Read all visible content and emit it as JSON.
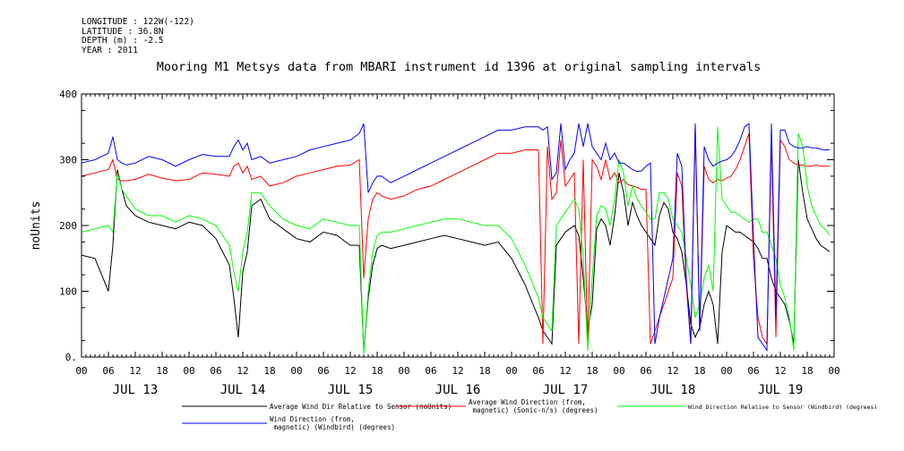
{
  "header": {
    "meta_lines": [
      "LONGITUDE : 122W(-122)",
      "LATITUDE : 36.8N",
      "DEPTH (m) : -2.5",
      "YEAR : 2011"
    ]
  },
  "chart_data": {
    "type": "line",
    "title": "Mooring M1 Metsys data from MBARI instrument id 1396 at original sampling intervals",
    "ylabel": "noUnits",
    "xlabel": "",
    "ylim": [
      0,
      400
    ],
    "yticks": [
      0,
      100,
      200,
      300,
      400
    ],
    "ytick_labels": [
      "0.",
      "100",
      "200",
      "300",
      "400"
    ],
    "xlim_hours": [
      0,
      168
    ],
    "hour_labels": [
      "00",
      "06",
      "12",
      "18",
      "00",
      "06",
      "12",
      "18",
      "00",
      "06",
      "12",
      "18",
      "00",
      "06",
      "12",
      "18",
      "00",
      "06",
      "12",
      "18",
      "00",
      "06",
      "12",
      "18",
      "00",
      "06",
      "12",
      "18",
      "00"
    ],
    "day_labels": [
      "JUL 13",
      "JUL 14",
      "JUL 15",
      "JUL 16",
      "JUL 17",
      "JUL 18",
      "JUL 19"
    ],
    "grid": false,
    "legend_position": "bottom",
    "series": [
      {
        "name": "Average Wind Dir Relative to Sensor (noUnits)",
        "color": "#000000",
        "x": [
          0,
          3,
          6,
          7,
          8,
          9,
          10,
          12,
          15,
          18,
          21,
          24,
          27,
          30,
          33,
          34,
          35,
          36,
          37,
          38,
          40,
          42,
          45,
          48,
          51,
          54,
          57,
          60,
          62,
          63,
          64,
          65,
          66,
          67,
          69,
          72,
          75,
          78,
          81,
          84,
          87,
          90,
          93,
          96,
          99,
          102,
          103,
          104,
          105,
          106,
          107,
          108,
          109,
          110,
          111,
          112,
          113,
          114,
          115,
          116,
          117,
          118,
          119,
          120,
          121,
          122,
          123,
          124,
          125,
          126,
          127,
          128,
          129,
          130,
          131,
          132,
          133,
          134,
          135,
          136,
          137,
          138,
          139,
          140,
          141,
          142,
          143,
          144,
          145,
          146,
          147,
          148,
          149,
          150,
          151,
          152,
          153,
          154,
          155,
          156,
          157,
          158,
          159,
          160,
          161,
          162,
          163,
          164,
          165,
          166,
          167
        ],
        "y": [
          155,
          150,
          100,
          170,
          285,
          255,
          230,
          215,
          205,
          200,
          195,
          205,
          200,
          180,
          140,
          90,
          30,
          130,
          160,
          230,
          240,
          210,
          195,
          180,
          175,
          190,
          185,
          170,
          170,
          10,
          90,
          140,
          165,
          170,
          165,
          170,
          175,
          180,
          185,
          180,
          175,
          170,
          175,
          150,
          110,
          60,
          40,
          30,
          20,
          170,
          180,
          190,
          195,
          200,
          185,
          120,
          40,
          80,
          195,
          210,
          200,
          170,
          215,
          280,
          250,
          200,
          235,
          215,
          200,
          190,
          180,
          170,
          215,
          235,
          225,
          190,
          180,
          160,
          110,
          50,
          30,
          45,
          80,
          100,
          80,
          20,
          160,
          200,
          195,
          190,
          190,
          185,
          180,
          175,
          165,
          150,
          150,
          120,
          100,
          90,
          80,
          55,
          20,
          300,
          250,
          210,
          195,
          180,
          170,
          165,
          160
        ]
      },
      {
        "name": "Average Wind Direction (from, magnetic) (Sonic-n/s) (degrees)",
        "color": "#ff0000",
        "x": [
          0,
          3,
          6,
          7,
          8,
          9,
          10,
          12,
          15,
          18,
          21,
          24,
          27,
          30,
          33,
          34,
          35,
          36,
          37,
          38,
          40,
          42,
          45,
          48,
          51,
          54,
          57,
          60,
          62,
          63,
          64,
          65,
          66,
          67,
          69,
          72,
          75,
          78,
          81,
          84,
          87,
          90,
          93,
          96,
          99,
          102,
          103,
          104,
          105,
          106,
          107,
          108,
          109,
          110,
          111,
          112,
          113,
          114,
          115,
          116,
          117,
          118,
          119,
          120,
          121,
          122,
          123,
          124,
          125,
          126,
          127,
          128,
          129,
          130,
          131,
          132,
          133,
          134,
          135,
          136,
          137,
          138,
          139,
          140,
          141,
          142,
          143,
          144,
          145,
          146,
          147,
          148,
          149,
          150,
          151,
          152,
          153,
          154,
          155,
          156,
          157,
          158,
          159,
          160,
          161,
          162,
          163,
          164,
          165,
          166,
          167
        ],
        "y": [
          275,
          280,
          285,
          300,
          270,
          268,
          268,
          270,
          278,
          272,
          268,
          270,
          280,
          278,
          275,
          290,
          295,
          280,
          290,
          270,
          275,
          260,
          265,
          275,
          280,
          285,
          290,
          292,
          300,
          120,
          210,
          240,
          250,
          245,
          240,
          245,
          255,
          260,
          270,
          280,
          290,
          300,
          310,
          310,
          315,
          315,
          20,
          320,
          240,
          250,
          330,
          260,
          270,
          280,
          20,
          300,
          15,
          300,
          290,
          270,
          300,
          270,
          280,
          265,
          270,
          262,
          260,
          258,
          255,
          255,
          20,
          40,
          60,
          80,
          100,
          120,
          280,
          260,
          110,
          20,
          350,
          40,
          290,
          270,
          265,
          270,
          268,
          272,
          275,
          285,
          300,
          320,
          340,
          150,
          60,
          30,
          20,
          330,
          30,
          330,
          320,
          300,
          295,
          292,
          292,
          290,
          290,
          292,
          290,
          290,
          290
        ]
      },
      {
        "name": "Wind Direction Relative to Sensor (Windbird) (degrees)",
        "color": "#00ff00",
        "x": [
          0,
          3,
          6,
          7,
          8,
          9,
          10,
          12,
          15,
          18,
          21,
          24,
          27,
          30,
          33,
          34,
          35,
          36,
          37,
          38,
          40,
          42,
          45,
          48,
          51,
          54,
          57,
          60,
          62,
          63,
          64,
          65,
          66,
          67,
          69,
          72,
          75,
          78,
          81,
          84,
          87,
          90,
          93,
          96,
          99,
          102,
          103,
          104,
          105,
          106,
          107,
          108,
          109,
          110,
          111,
          112,
          113,
          114,
          115,
          116,
          117,
          118,
          119,
          120,
          121,
          122,
          123,
          124,
          125,
          126,
          127,
          128,
          129,
          130,
          131,
          132,
          133,
          134,
          135,
          136,
          137,
          138,
          139,
          140,
          141,
          142,
          143,
          144,
          145,
          146,
          147,
          148,
          149,
          150,
          151,
          152,
          153,
          154,
          155,
          156,
          157,
          158,
          159,
          160,
          161,
          162,
          163,
          164,
          165,
          166,
          167
        ],
        "y": [
          190,
          195,
          200,
          190,
          280,
          255,
          245,
          225,
          215,
          215,
          205,
          215,
          210,
          200,
          170,
          130,
          100,
          160,
          190,
          250,
          250,
          230,
          210,
          200,
          195,
          210,
          205,
          200,
          200,
          5,
          100,
          160,
          185,
          190,
          190,
          195,
          200,
          205,
          210,
          210,
          205,
          200,
          200,
          180,
          140,
          90,
          60,
          50,
          40,
          200,
          210,
          220,
          230,
          240,
          225,
          150,
          10,
          120,
          215,
          230,
          225,
          200,
          240,
          300,
          280,
          230,
          260,
          240,
          230,
          220,
          210,
          210,
          250,
          250,
          240,
          210,
          200,
          190,
          150,
          110,
          60,
          80,
          120,
          140,
          100,
          350,
          240,
          230,
          220,
          220,
          215,
          210,
          205,
          210,
          210,
          190,
          190,
          170,
          150,
          110,
          90,
          60,
          10,
          340,
          320,
          260,
          230,
          215,
          200,
          195,
          185
        ]
      },
      {
        "name": "Wind Direction (from, magnetic) (Windbird) (degrees)",
        "color": "#0000ff",
        "x": [
          0,
          3,
          6,
          7,
          8,
          9,
          10,
          12,
          15,
          18,
          21,
          24,
          27,
          30,
          33,
          34,
          35,
          36,
          37,
          38,
          40,
          42,
          45,
          48,
          51,
          54,
          57,
          60,
          62,
          63,
          64,
          65,
          66,
          67,
          69,
          72,
          75,
          78,
          81,
          84,
          87,
          90,
          93,
          96,
          99,
          102,
          103,
          104,
          105,
          106,
          107,
          108,
          109,
          110,
          111,
          112,
          113,
          114,
          115,
          116,
          117,
          118,
          119,
          120,
          121,
          122,
          123,
          124,
          125,
          126,
          127,
          128,
          129,
          130,
          131,
          132,
          133,
          134,
          135,
          136,
          137,
          138,
          139,
          140,
          141,
          142,
          143,
          144,
          145,
          146,
          147,
          148,
          149,
          150,
          151,
          152,
          153,
          154,
          155,
          156,
          157,
          158,
          159,
          160,
          161,
          162,
          163,
          164,
          165,
          166,
          167
        ],
        "y": [
          295,
          300,
          310,
          335,
          300,
          295,
          292,
          295,
          305,
          300,
          290,
          300,
          308,
          305,
          305,
          320,
          330,
          315,
          325,
          300,
          305,
          295,
          300,
          305,
          315,
          320,
          325,
          330,
          340,
          355,
          250,
          265,
          275,
          275,
          265,
          275,
          285,
          295,
          305,
          315,
          325,
          335,
          345,
          345,
          350,
          350,
          345,
          350,
          270,
          280,
          355,
          285,
          300,
          310,
          355,
          320,
          355,
          320,
          310,
          300,
          325,
          300,
          310,
          295,
          295,
          290,
          285,
          282,
          283,
          290,
          295,
          20,
          60,
          90,
          120,
          150,
          310,
          290,
          120,
          20,
          355,
          40,
          320,
          300,
          290,
          295,
          298,
          300,
          305,
          315,
          330,
          350,
          355,
          180,
          30,
          20,
          10,
          355,
          60,
          345,
          345,
          325,
          320,
          318,
          318,
          320,
          318,
          318,
          316,
          315,
          315
        ]
      }
    ]
  }
}
